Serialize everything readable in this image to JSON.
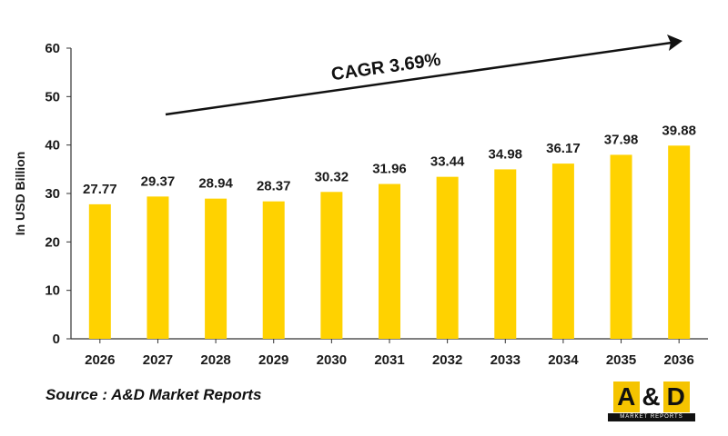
{
  "chart_data": {
    "type": "bar",
    "categories": [
      "2026",
      "2027",
      "2028",
      "2029",
      "2030",
      "2031",
      "2032",
      "2033",
      "2034",
      "2035",
      "2036"
    ],
    "values": [
      27.77,
      29.37,
      28.94,
      28.37,
      30.32,
      31.96,
      33.44,
      34.98,
      36.17,
      37.98,
      39.88
    ],
    "data_labels": [
      "27.77",
      "29.37",
      "28.94",
      "28.37",
      "30.32",
      "31.96",
      "33.44",
      "34.98",
      "36.17",
      "37.98",
      "39.88"
    ],
    "ylabel": "In USD Billion",
    "xlabel": "",
    "ylim": [
      0,
      60
    ],
    "yticks": [
      0,
      10,
      20,
      30,
      40,
      50,
      60
    ],
    "grid": false,
    "bar_color": "#ffd200",
    "annotation": "CAGR 3.69%"
  },
  "source": "Source : A&D Market Reports",
  "logo": {
    "main_left": "A",
    "main_amp": "&",
    "main_right": "D",
    "sub": "MARKET REPORTS"
  }
}
